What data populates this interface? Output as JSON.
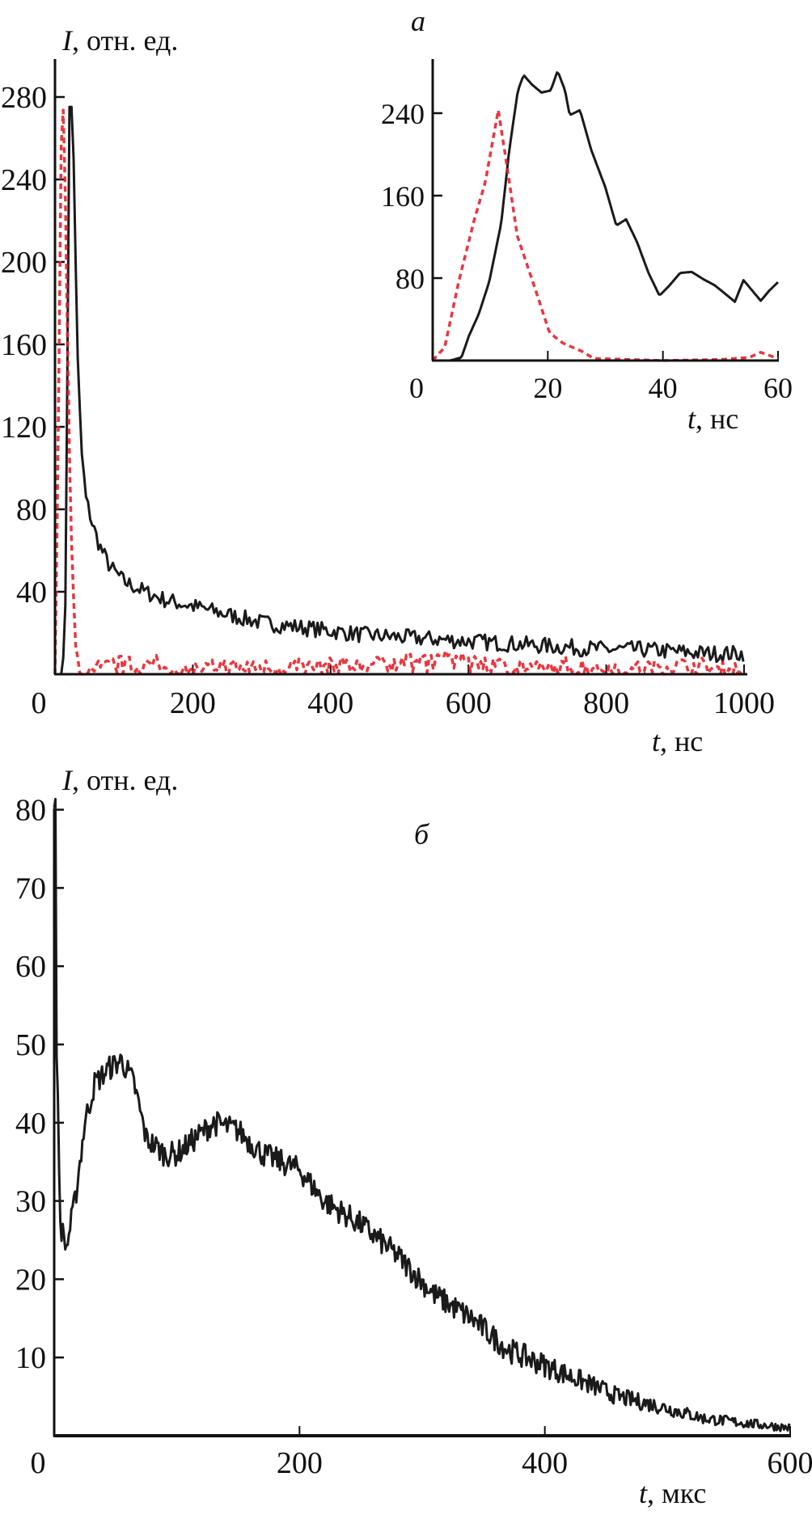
{
  "colors": {
    "solid": "#1a1a1a",
    "dashed": "#e8202a",
    "axis": "#111111"
  },
  "chart_data": [
    {
      "panel": "а",
      "type": "line",
      "ylabel": "I, отн. ед.",
      "ylabel_var": "I",
      "ylabel_unit": ", отн. ед.",
      "xlabel": "t, нс",
      "xlabel_var": "t",
      "xlabel_unit": ", нс",
      "xlim": [
        0,
        1000
      ],
      "ylim": [
        0,
        300
      ],
      "xticks": [
        "0",
        "200",
        "400",
        "600",
        "800",
        "1000"
      ],
      "yticks": [
        "40",
        "80",
        "120",
        "160",
        "200",
        "240",
        "280"
      ],
      "grid": false,
      "series": [
        {
          "style": "solid",
          "color": "#1a1a1a",
          "x": [
            0,
            10,
            15,
            18,
            20,
            22,
            25,
            28,
            32,
            38,
            45,
            55,
            65,
            80,
            100,
            130,
            160,
            200,
            250,
            300,
            350,
            400,
            450,
            500,
            550,
            600,
            650,
            700,
            750,
            800,
            850,
            900,
            950,
            1000
          ],
          "y": [
            0,
            0,
            30,
            150,
            275,
            280,
            270,
            240,
            160,
            110,
            85,
            72,
            62,
            52,
            45,
            40,
            36,
            33,
            29,
            25,
            23,
            21,
            19,
            18,
            17,
            16,
            15,
            14,
            13,
            12,
            12,
            11,
            10,
            10
          ]
        },
        {
          "style": "dashed",
          "color": "#e8202a",
          "x": [
            0,
            5,
            9,
            12,
            15,
            20,
            25,
            30,
            35,
            40,
            60,
            95,
            200,
            300,
            400,
            570,
            700,
            750,
            830,
            910,
            1000
          ],
          "y": [
            0,
            120,
            260,
            275,
            230,
            120,
            50,
            12,
            3,
            0,
            4,
            6,
            3,
            4,
            4,
            8,
            3,
            4,
            3,
            5,
            2
          ]
        }
      ],
      "inset": {
        "xlabel": "t, нс",
        "xlabel_var": "t",
        "xlabel_unit": ", нс",
        "xlim": [
          0,
          60
        ],
        "ylim": [
          0,
          293
        ],
        "xticks": [
          "0",
          "20",
          "40",
          "60"
        ],
        "yticks": [
          "80",
          "160",
          "240"
        ],
        "series": [
          {
            "style": "solid",
            "color": "#1a1a1a",
            "x": [
              0,
              3,
              5,
              6.3,
              8,
              9.8,
              11.9,
              13.3,
              14.8,
              15.8,
              17.2,
              18.9,
              20.5,
              21.7,
              23,
              23.8,
              25.6,
              27.5,
              30,
              31.9,
              33.6,
              35.5,
              37.5,
              39.4,
              41,
              43,
              45,
              47,
              49,
              51,
              52.5,
              54,
              55.5,
              57,
              58.5,
              60
            ],
            "y": [
              0,
              0,
              3,
              24,
              45,
              76,
              133,
              204,
              262,
              277,
              268,
              260,
              262,
              281,
              262,
              238,
              243,
              205,
              168,
              131,
              137,
              115,
              85,
              63,
              72,
              85,
              86,
              79,
              73,
              64,
              57,
              78,
              68,
              58,
              68,
              76
            ]
          },
          {
            "style": "dashed",
            "color": "#e8202a",
            "x": [
              0,
              2.1,
              4.5,
              7.2,
              9.1,
              11.4,
              12.6,
              14.7,
              17.9,
              20.3,
              22.6,
              25.9,
              28,
              40,
              50,
              55,
              57,
              58.5,
              60
            ],
            "y": [
              0,
              13,
              76,
              136,
              172,
              243,
              200,
              121,
              68,
              27,
              17,
              9,
              2,
              0,
              1,
              3,
              8,
              5,
              2
            ]
          }
        ]
      }
    },
    {
      "panel": "б",
      "type": "line",
      "ylabel": "I, отн. ед.",
      "ylabel_var": "I",
      "ylabel_unit": ", отн. ед.",
      "xlabel": "t, мкс",
      "xlabel_var": "t",
      "xlabel_unit": ", мкс",
      "xlim": [
        0,
        600
      ],
      "ylim": [
        0,
        80
      ],
      "xticks": [
        "0",
        "200",
        "400",
        "600"
      ],
      "yticks": [
        "10",
        "20",
        "30",
        "40",
        "50",
        "60",
        "70",
        "80"
      ],
      "grid": false,
      "series": [
        {
          "style": "solid",
          "color": "#1a1a1a",
          "x": [
            0,
            1,
            2,
            5,
            10,
            17,
            25,
            33,
            45,
            55,
            65,
            75,
            90,
            100,
            115,
            130,
            150,
            170,
            200,
            220,
            250,
            280,
            310,
            340,
            370,
            400,
            430,
            460,
            500,
            530,
            570,
            600
          ],
          "y": [
            80,
            80,
            50,
            27,
            24,
            30,
            40,
            45,
            47,
            48,
            45,
            38,
            36,
            36,
            38,
            40,
            39,
            36,
            34,
            30,
            27,
            23,
            18,
            15,
            11,
            9,
            7,
            5,
            3.5,
            2.2,
            1.5,
            1
          ]
        }
      ]
    }
  ]
}
